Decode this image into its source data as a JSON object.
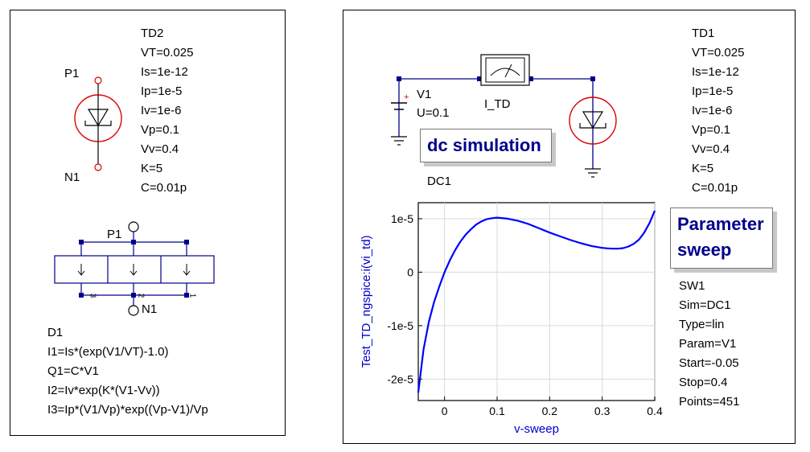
{
  "left": {
    "device_name": "TD2",
    "params": [
      "VT=0.025",
      "Is=1e-12",
      "Ip=1e-5",
      "Iv=1e-6",
      "Vp=0.1",
      "Vv=0.4",
      "K=5",
      "C=0.01p"
    ],
    "pin_top": "P1",
    "pin_bottom": "N1",
    "sub_pin_top": "P1",
    "sub_pin_bottom": "N1",
    "node_labels": [
      "3",
      "2",
      "1"
    ],
    "eqn_name": "D1",
    "equations": [
      "I1=Is*(exp(V1/VT)-1.0)",
      "Q1=C*V1",
      "I2=Iv*exp(K*(V1-Vv))",
      "I3=Ip*(V1/Vp)*exp((Vp-V1)/Vp"
    ]
  },
  "arrow": "→",
  "right": {
    "source_name": "V1",
    "source_value": "U=0.1",
    "probe_name": "I_TD",
    "device_name": "TD1",
    "params": [
      "VT=0.025",
      "Is=1e-12",
      "Ip=1e-5",
      "Iv=1e-6",
      "Vp=0.1",
      "Vv=0.4",
      "K=5",
      "C=0.01p"
    ],
    "dc_label": "dc simulation",
    "dc_name": "DC1",
    "sweep_label_1": "Parameter",
    "sweep_label_2": "sweep",
    "sweep_params": [
      "SW1",
      "Sim=DC1",
      "Type=lin",
      "Param=V1",
      "Start=-0.05",
      "Stop=0.4",
      "Points=451"
    ]
  },
  "chart_data": {
    "type": "line",
    "title": "",
    "xlabel": "v-sweep",
    "ylabel": "Test_TD_ngspice:i(vi_td)",
    "xlim": [
      -0.05,
      0.4
    ],
    "ylim": [
      -2.4e-05,
      1.3e-05
    ],
    "x_ticks": [
      0,
      0.1,
      0.2,
      0.3,
      0.4
    ],
    "x_tick_labels": [
      "0",
      "0.1",
      "0.2",
      "0.3",
      "0.4"
    ],
    "y_ticks": [
      1e-05,
      0,
      -1e-05,
      -2e-05
    ],
    "y_tick_labels": [
      "1e-5",
      "0",
      "-1e-5",
      "-2e-5"
    ],
    "grid": true,
    "series": [
      {
        "color": "#0000ff",
        "x": [
          -0.05,
          -0.04,
          -0.03,
          -0.02,
          -0.01,
          0,
          0.01,
          0.02,
          0.03,
          0.04,
          0.05,
          0.06,
          0.07,
          0.08,
          0.09,
          0.1,
          0.12,
          0.14,
          0.16,
          0.18,
          0.2,
          0.22,
          0.24,
          0.26,
          0.28,
          0.3,
          0.31,
          0.32,
          0.33,
          0.34,
          0.35,
          0.36,
          0.37,
          0.38,
          0.39,
          0.4
        ],
        "y": [
          -2.25e-05,
          -1.45e-05,
          -9.3e-06,
          -5.6e-06,
          -2.7e-06,
          0,
          2.2e-06,
          4.1e-06,
          5.7e-06,
          7e-06,
          8e-06,
          8.9e-06,
          9.5e-06,
          9.9e-06,
          1.01e-05,
          1.02e-05,
          1e-05,
          9.6e-06,
          9e-06,
          8.2e-06,
          7.4e-06,
          6.7e-06,
          6e-06,
          5.4e-06,
          4.9e-06,
          4.55e-06,
          4.45e-06,
          4.4e-06,
          4.4e-06,
          4.5e-06,
          4.8e-06,
          5.3e-06,
          6.1e-06,
          7.4e-06,
          9.2e-06,
          1.15e-05
        ]
      }
    ]
  }
}
